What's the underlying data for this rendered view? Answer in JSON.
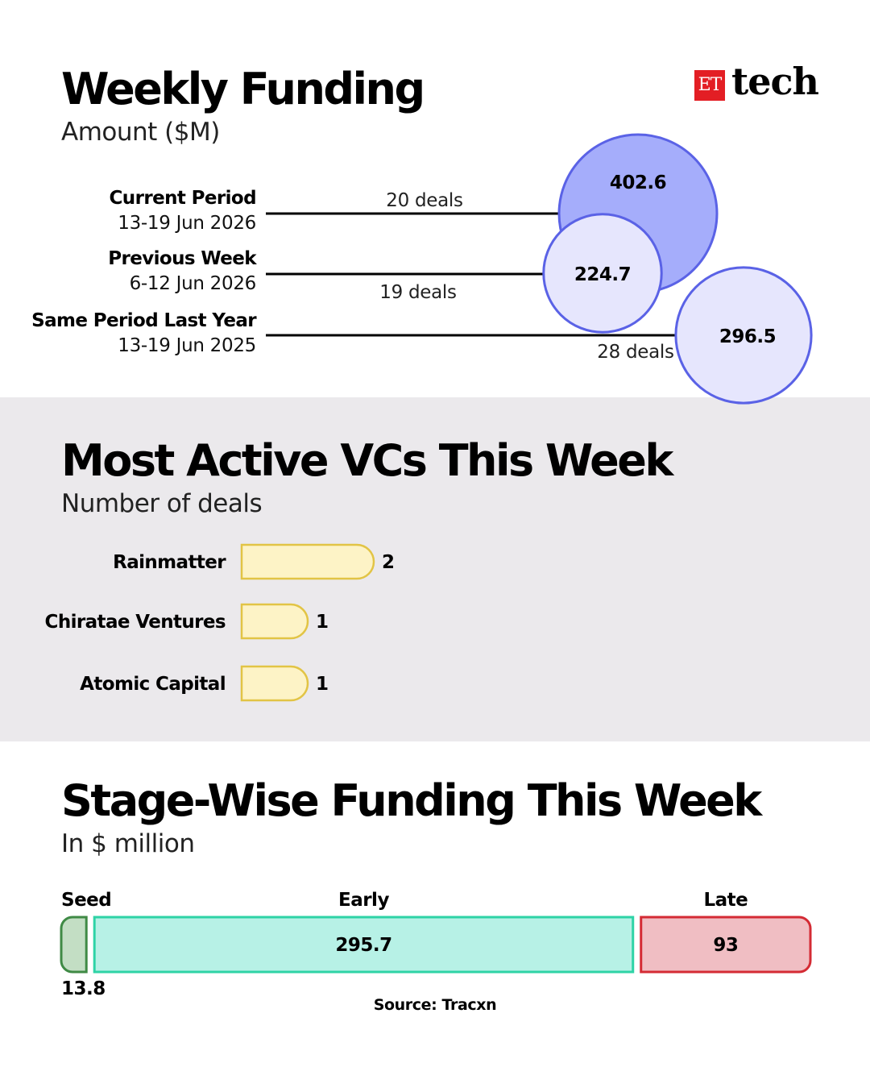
{
  "brand": {
    "et": "ET",
    "tech": "tech"
  },
  "weekly_funding": {
    "title": "Weekly Funding",
    "subtitle": "Amount ($M)"
  },
  "most_active": {
    "title": "Most Active VCs This Week",
    "subtitle": "Number of deals"
  },
  "stage_wise": {
    "title": "Stage-Wise Funding This Week",
    "subtitle": "In $ million"
  },
  "source": "Source: Tracxn",
  "chart_data": [
    {
      "type": "bubble",
      "title": "Weekly Funding",
      "subtitle": "Amount ($M)",
      "periods": [
        {
          "name": "Current Period",
          "dates": "13-19 Jun 2026",
          "deals": "20 deals",
          "amount": 402.6,
          "color": "#a5adfb"
        },
        {
          "name": "Previous Week",
          "dates": "6-12 Jun 2026",
          "deals": "19 deals",
          "amount": 224.7,
          "color": "#e6e6fd"
        },
        {
          "name": "Same Period Last Year",
          "dates": "13-19 Jun 2025",
          "deals": "28 deals",
          "amount": 296.5,
          "color": "#e6e6fd"
        }
      ]
    },
    {
      "type": "bar",
      "title": "Most Active VCs This Week",
      "subtitle": "Number of deals",
      "categories": [
        "Rainmatter",
        "Chiratae Ventures",
        "Atomic Capital"
      ],
      "values": [
        2,
        1,
        1
      ],
      "color": "#fdf3c6"
    },
    {
      "type": "bar",
      "orientation": "stacked-horizontal",
      "title": "Stage-Wise Funding This Week",
      "subtitle": "In $ million",
      "categories": [
        "Seed",
        "Early",
        "Late"
      ],
      "values": [
        13.8,
        295.7,
        93
      ],
      "colors": [
        "#c3dec4",
        "#b7f1e6",
        "#f0bec3"
      ]
    }
  ]
}
